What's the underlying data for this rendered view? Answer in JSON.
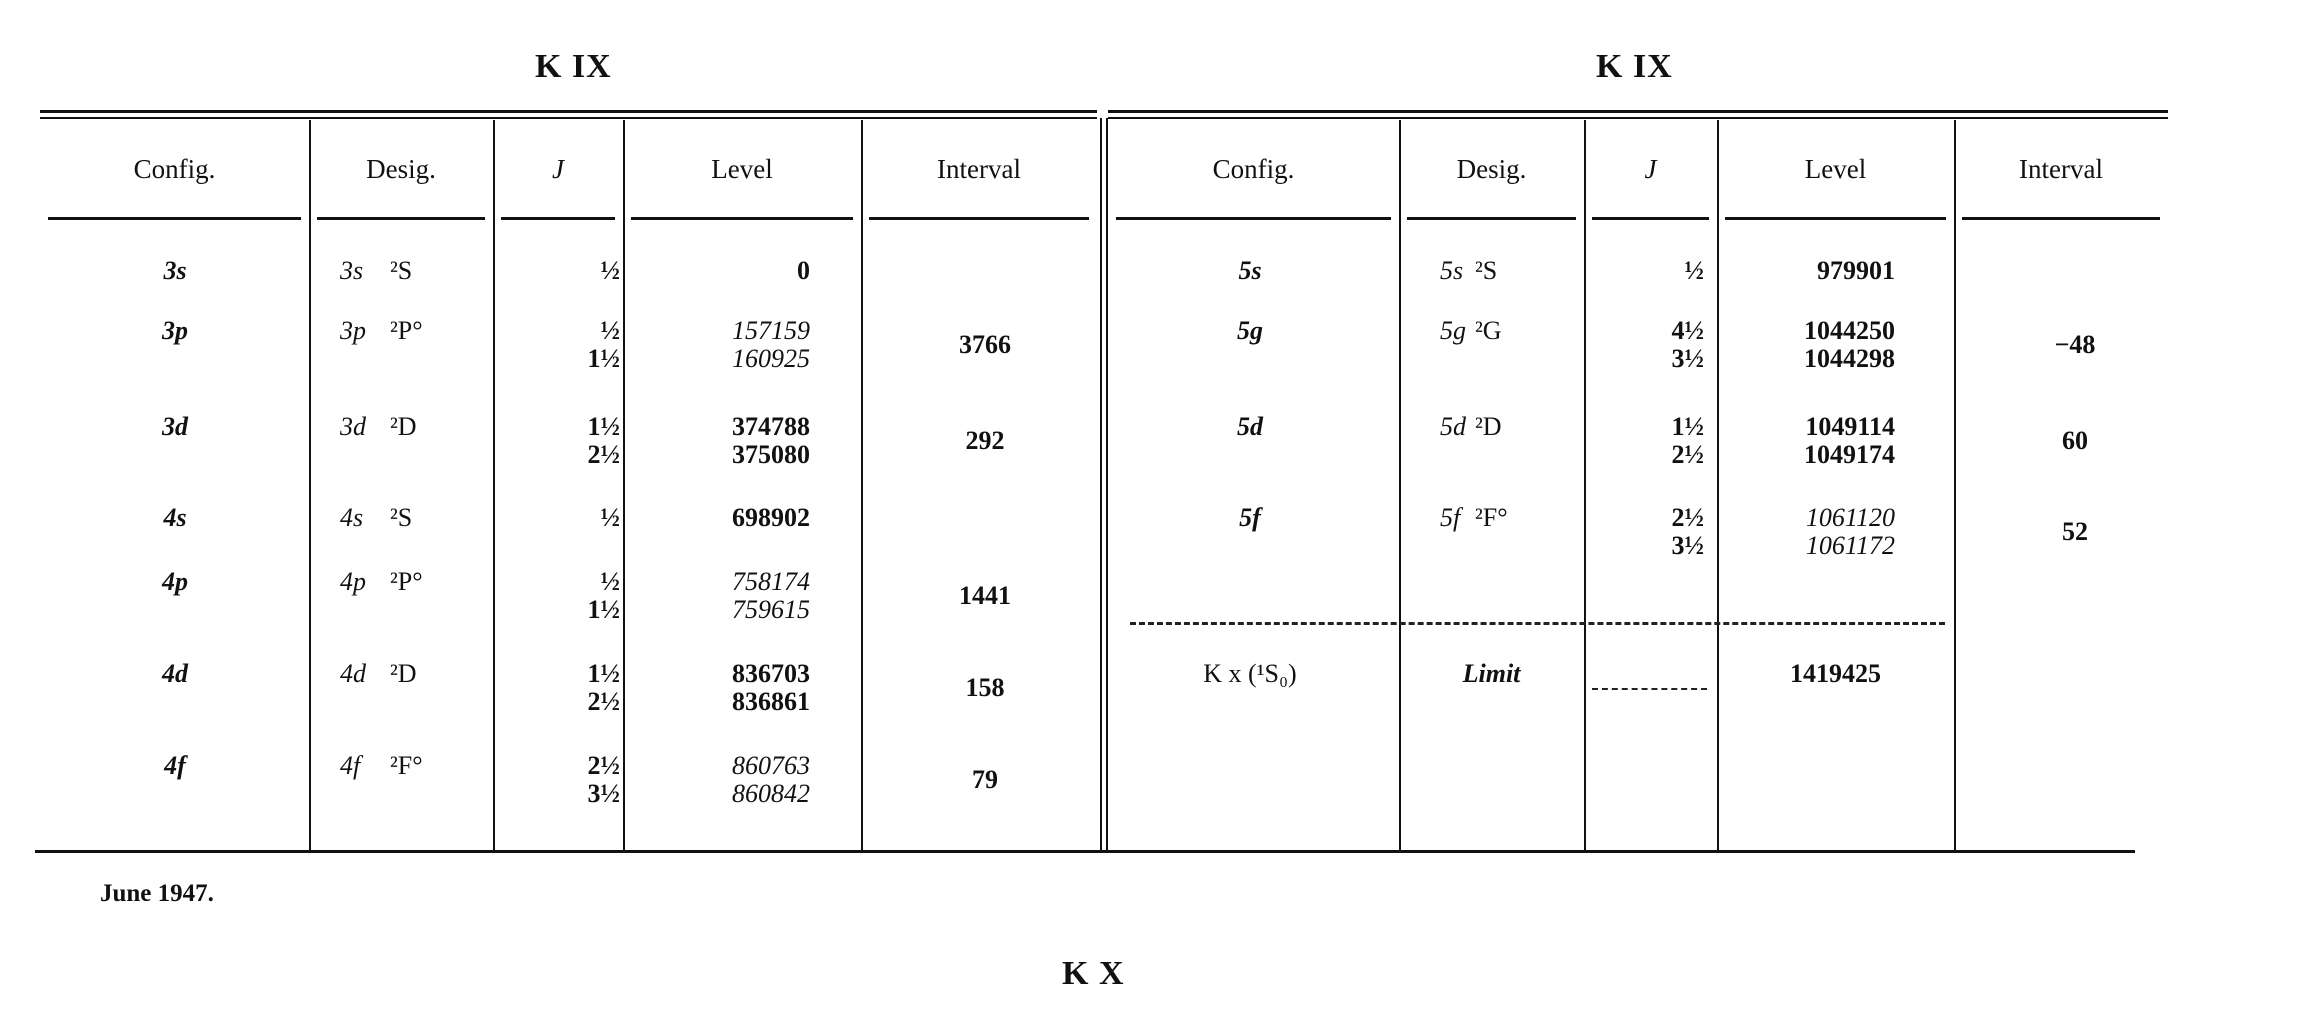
{
  "tables": [
    {
      "title": "K IX",
      "headers": [
        "Config.",
        "Desig.",
        "J",
        "Level",
        "Interval"
      ],
      "rows": [
        {
          "config": "3s",
          "desig_config": "3s",
          "term": "²S",
          "J": [
            "½"
          ],
          "level": [
            "0"
          ],
          "level_italic": false,
          "interval": ""
        },
        {
          "config": "3p",
          "desig_config": "3p",
          "term": "²P°",
          "J": [
            "½",
            "1½"
          ],
          "level": [
            "157159",
            "160925"
          ],
          "level_italic": true,
          "interval": "3766"
        },
        {
          "config": "3d",
          "desig_config": "3d",
          "term": "²D",
          "J": [
            "1½",
            "2½"
          ],
          "level": [
            "374788",
            "375080"
          ],
          "level_italic": false,
          "interval": "292"
        },
        {
          "config": "4s",
          "desig_config": "4s",
          "term": "²S",
          "J": [
            "½"
          ],
          "level": [
            "698902"
          ],
          "level_italic": false,
          "interval": ""
        },
        {
          "config": "4p",
          "desig_config": "4p",
          "term": "²P°",
          "J": [
            "½",
            "1½"
          ],
          "level": [
            "758174",
            "759615"
          ],
          "level_italic": true,
          "interval": "1441"
        },
        {
          "config": "4d",
          "desig_config": "4d",
          "term": "²D",
          "J": [
            "1½",
            "2½"
          ],
          "level": [
            "836703",
            "836861"
          ],
          "level_italic": false,
          "interval": "158"
        },
        {
          "config": "4f",
          "desig_config": "4f",
          "term": "²F°",
          "J": [
            "2½",
            "3½"
          ],
          "level": [
            "860763",
            "860842"
          ],
          "level_italic": true,
          "interval": "79"
        }
      ]
    },
    {
      "title": "K IX",
      "headers": [
        "Config.",
        "Desig.",
        "J",
        "Level",
        "Interval"
      ],
      "rows": [
        {
          "config": "5s",
          "desig_config": "5s",
          "term": "²S",
          "J": [
            "½"
          ],
          "level": [
            "979901"
          ],
          "level_italic": false,
          "interval": ""
        },
        {
          "config": "5g",
          "desig_config": "5g",
          "term": "²G",
          "J": [
            "4½",
            "3½"
          ],
          "level": [
            "1044250",
            "1044298"
          ],
          "level_italic": false,
          "interval": "−48"
        },
        {
          "config": "5d",
          "desig_config": "5d",
          "term": "²D",
          "J": [
            "1½",
            "2½"
          ],
          "level": [
            "1049114",
            "1049174"
          ],
          "level_italic": false,
          "interval": "60"
        },
        {
          "config": "5f",
          "desig_config": "5f",
          "term": "²F°",
          "J": [
            "2½",
            "3½"
          ],
          "level": [
            "1061120",
            "1061172"
          ],
          "level_italic": true,
          "interval": "52"
        }
      ],
      "limit_row": {
        "config": "K x (¹S₀)",
        "desig": "Limit",
        "level": "1419425"
      }
    }
  ],
  "footer": {
    "date": "June 1947.",
    "next_title": "K X"
  }
}
